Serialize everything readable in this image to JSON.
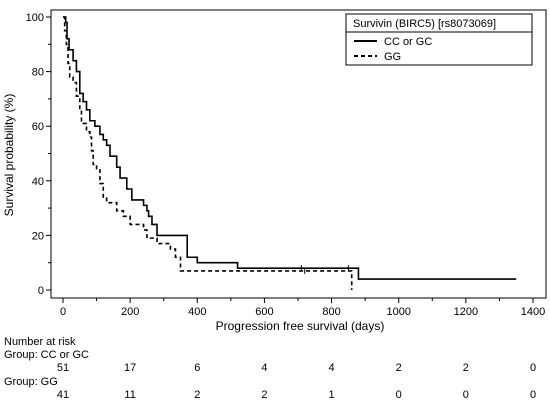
{
  "chart_data": {
    "type": "line",
    "title": "",
    "xlabel": "Progression free survival (days)",
    "ylabel": "Survival probability (%)",
    "xlim": [
      0,
      1400
    ],
    "ylim": [
      0,
      100
    ],
    "x_ticks": [
      0,
      200,
      400,
      600,
      800,
      1000,
      1200,
      1400
    ],
    "y_ticks": [
      0,
      20,
      40,
      60,
      80,
      100
    ],
    "grid": false,
    "legend": {
      "title": "Survivin (BIRC5) [rs8073069]",
      "placement": "top-right",
      "entries": [
        "CC or GC",
        "GG"
      ]
    },
    "series": [
      {
        "name": "CC or GC",
        "line_style": "solid",
        "steps": [
          [
            0,
            100
          ],
          [
            8,
            98
          ],
          [
            12,
            92
          ],
          [
            18,
            88
          ],
          [
            30,
            84
          ],
          [
            40,
            80
          ],
          [
            50,
            72
          ],
          [
            60,
            69
          ],
          [
            70,
            66
          ],
          [
            80,
            62
          ],
          [
            95,
            60
          ],
          [
            110,
            57
          ],
          [
            120,
            55
          ],
          [
            130,
            53
          ],
          [
            140,
            49
          ],
          [
            160,
            45
          ],
          [
            170,
            41
          ],
          [
            190,
            37
          ],
          [
            205,
            33
          ],
          [
            240,
            31
          ],
          [
            250,
            29
          ],
          [
            255,
            27
          ],
          [
            265,
            24
          ],
          [
            280,
            20
          ],
          [
            370,
            12
          ],
          [
            395,
            12
          ],
          [
            400,
            10
          ],
          [
            520,
            8
          ],
          [
            880,
            4
          ],
          [
            1350,
            4
          ]
        ],
        "censored_x": [
          710,
          850
        ]
      },
      {
        "name": "GG",
        "line_style": "dashed",
        "steps": [
          [
            0,
            100
          ],
          [
            5,
            95
          ],
          [
            10,
            90
          ],
          [
            15,
            83
          ],
          [
            20,
            78
          ],
          [
            30,
            76
          ],
          [
            40,
            71
          ],
          [
            50,
            66
          ],
          [
            55,
            61
          ],
          [
            70,
            58
          ],
          [
            80,
            56
          ],
          [
            85,
            51
          ],
          [
            90,
            46
          ],
          [
            100,
            44
          ],
          [
            110,
            39
          ],
          [
            120,
            34
          ],
          [
            130,
            32
          ],
          [
            160,
            29
          ],
          [
            180,
            27
          ],
          [
            200,
            24
          ],
          [
            240,
            22
          ],
          [
            250,
            19
          ],
          [
            280,
            17
          ],
          [
            320,
            15
          ],
          [
            335,
            12
          ],
          [
            350,
            7
          ],
          [
            860,
            0
          ]
        ],
        "censored_x": [
          720
        ]
      }
    ]
  },
  "risk_table": {
    "header": "Number at risk",
    "groups": [
      {
        "label": "Group: CC or GC",
        "counts": [
          "51",
          "17",
          "6",
          "4",
          "4",
          "2",
          "2",
          "0"
        ]
      },
      {
        "label": "Group: GG",
        "counts": [
          "41",
          "11",
          "2",
          "2",
          "1",
          "0",
          "0",
          "0"
        ]
      }
    ]
  }
}
